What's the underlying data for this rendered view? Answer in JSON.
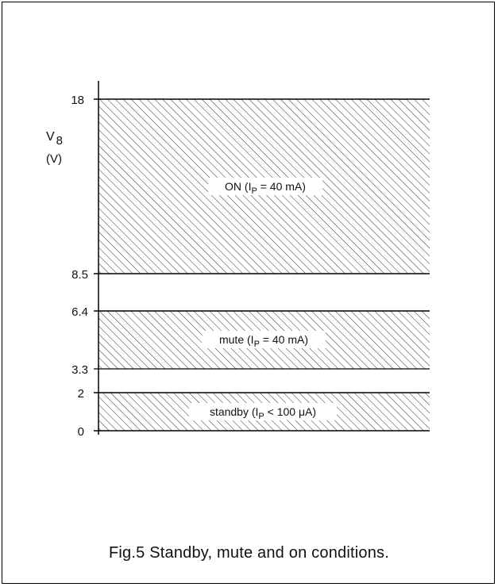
{
  "figure": {
    "caption": "Fig.5  Standby, mute and on conditions.",
    "y_axis": {
      "label_main": "V",
      "label_sub": "8",
      "label_unit": "(V)",
      "ticks": [
        "0",
        "2",
        "3.3",
        "6.4",
        "8.5",
        "18"
      ]
    },
    "regions": [
      {
        "name": "standby",
        "from": 0,
        "to": 2,
        "label_prefix": "standby (I",
        "label_sub": "P",
        "label_suffix": " < 100 μA)"
      },
      {
        "name": "mute",
        "from": 3.3,
        "to": 6.4,
        "label_prefix": "mute (I",
        "label_sub": "P",
        "label_suffix": " = 40 mA)"
      },
      {
        "name": "on",
        "from": 8.5,
        "to": 18,
        "label_prefix": "ON (I",
        "label_sub": "P",
        "label_suffix": " = 40 mA)"
      }
    ],
    "colors": {
      "line": "#000000",
      "hatch": "#333333",
      "background": "#ffffff"
    }
  }
}
